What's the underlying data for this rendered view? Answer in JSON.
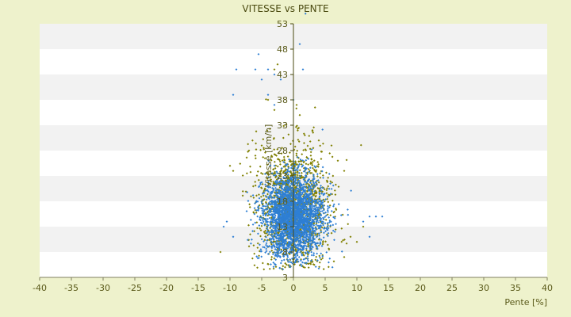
{
  "chart_data": {
    "type": "scatter",
    "title": "VITESSE vs PENTE",
    "xlabel": "Pente [%]",
    "ylabel": "Vitesse [km/h]",
    "xlim": [
      -40,
      40
    ],
    "ylim": [
      3,
      53
    ],
    "x_ticks": [
      -40,
      -35,
      -30,
      -25,
      -20,
      -15,
      -10,
      -5,
      0,
      5,
      10,
      15,
      20,
      25,
      30,
      35,
      40
    ],
    "y_ticks": [
      3,
      8,
      13,
      18,
      23,
      28,
      33,
      38,
      43,
      48,
      53
    ],
    "grid": "horizontal banded",
    "legend": "none",
    "series": [
      {
        "color": "#808000",
        "marker": "small-diamond",
        "distribution": {
          "center_x": 0,
          "center_y": 17,
          "spread_x": 2.8,
          "spread_y": 6,
          "count": 1400
        },
        "notable_points": [
          {
            "x": -11.5,
            "y": 8
          },
          {
            "x": -9.5,
            "y": 24
          },
          {
            "x": -10,
            "y": 25
          },
          {
            "x": -6,
            "y": 27
          },
          {
            "x": -5,
            "y": 29
          },
          {
            "x": -4,
            "y": 38
          },
          {
            "x": -3,
            "y": 44
          },
          {
            "x": -2.5,
            "y": 45
          },
          {
            "x": -3,
            "y": 36
          },
          {
            "x": 0.5,
            "y": 37
          },
          {
            "x": 1,
            "y": 35
          },
          {
            "x": 3,
            "y": 32
          },
          {
            "x": 4,
            "y": 30
          },
          {
            "x": 6,
            "y": 29
          },
          {
            "x": 7,
            "y": 26
          },
          {
            "x": 8,
            "y": 24
          },
          {
            "x": 9,
            "y": 11
          },
          {
            "x": 10,
            "y": 10
          },
          {
            "x": 11,
            "y": 13
          },
          {
            "x": 8,
            "y": 7
          },
          {
            "x": -7,
            "y": 28
          }
        ]
      },
      {
        "color": "#2e7fd4",
        "marker": "small-diamond",
        "distribution": {
          "center_x": 0,
          "center_y": 15,
          "spread_x": 2.4,
          "spread_y": 4,
          "count": 2600
        },
        "notable_points": [
          {
            "x": 1.9,
            "y": 55
          },
          {
            "x": 1,
            "y": 49
          },
          {
            "x": 1.5,
            "y": 44
          },
          {
            "x": -9,
            "y": 44
          },
          {
            "x": -6,
            "y": 44
          },
          {
            "x": -5.5,
            "y": 47
          },
          {
            "x": -5,
            "y": 42
          },
          {
            "x": -4,
            "y": 44
          },
          {
            "x": -3,
            "y": 43
          },
          {
            "x": -2,
            "y": 42
          },
          {
            "x": -9.5,
            "y": 39
          },
          {
            "x": -4,
            "y": 39
          },
          {
            "x": -3,
            "y": 37
          },
          {
            "x": 12,
            "y": 15
          },
          {
            "x": 13,
            "y": 15
          },
          {
            "x": 14,
            "y": 15
          },
          {
            "x": 11,
            "y": 14
          },
          {
            "x": 12,
            "y": 11
          },
          {
            "x": -10.5,
            "y": 14
          },
          {
            "x": -11,
            "y": 13
          },
          {
            "x": -9.5,
            "y": 11
          },
          {
            "x": 0,
            "y": 38
          }
        ]
      }
    ]
  },
  "colors": {
    "background": "#eef2cc",
    "plot_band_light": "#ffffff",
    "plot_band_dark": "#f2f2f2",
    "axis": "#808060",
    "text": "#5a5a1a"
  }
}
